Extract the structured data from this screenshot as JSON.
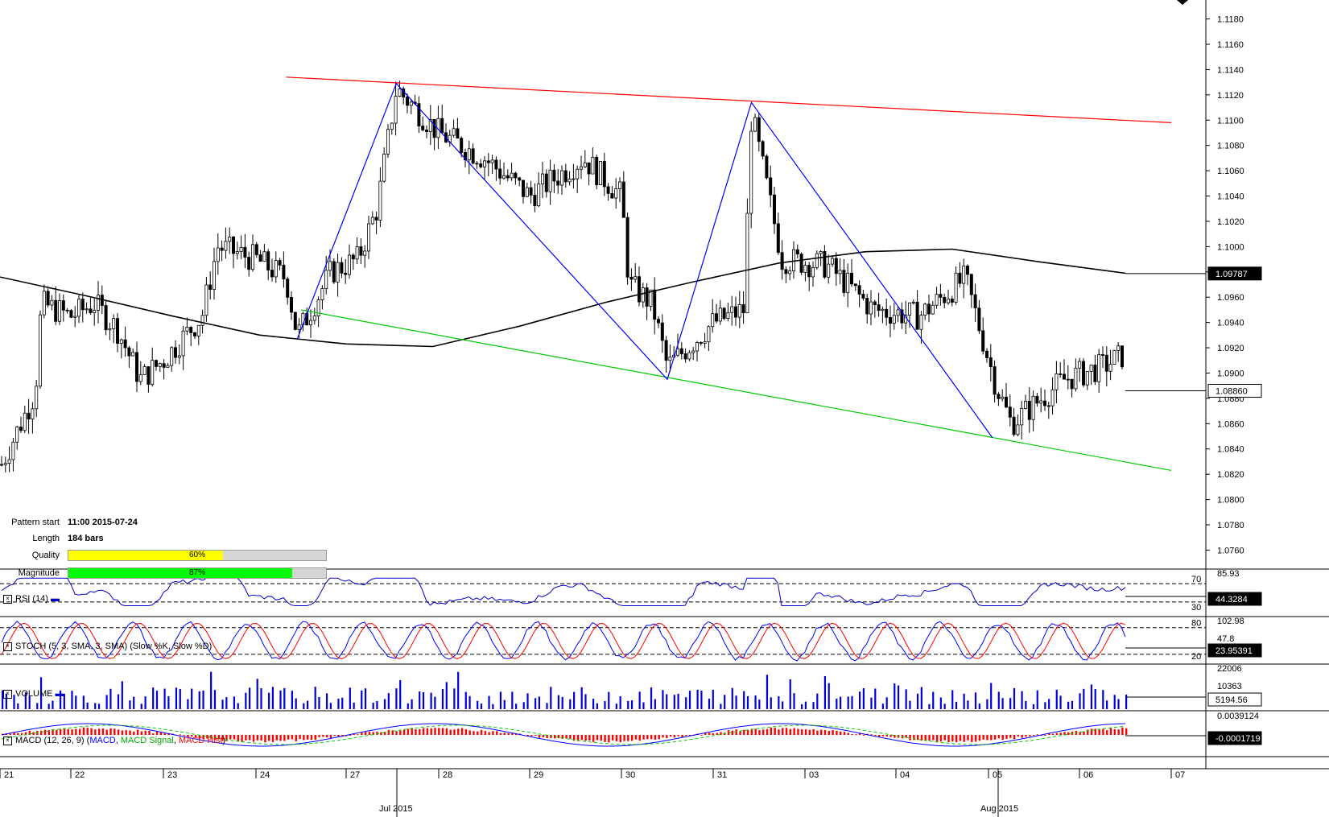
{
  "price_axis": {
    "ticks": [
      "1.1180",
      "1.1160",
      "1.1140",
      "1.1120",
      "1.1100",
      "1.1080",
      "1.1060",
      "1.1040",
      "1.1020",
      "1.1000",
      "1.0980",
      "1.0960",
      "1.0940",
      "1.0920",
      "1.0900",
      "1.0880",
      "1.0860",
      "1.0840",
      "1.0820",
      "1.0800",
      "1.0780",
      "1.0760"
    ],
    "ma_label": "1.09787",
    "price_label": "1.08860"
  },
  "time_axis": {
    "day_labels": [
      "21",
      "22",
      "23",
      "24",
      "27",
      "28",
      "29",
      "30",
      "31",
      "03",
      "04",
      "05",
      "06",
      "07"
    ],
    "month_labels": [
      "Jul 2015",
      "Aug 2015"
    ]
  },
  "pattern_info": {
    "start_label": "Pattern start",
    "start_value": "11:00 2015-07-24",
    "length_label": "Length",
    "length_value": "184 bars",
    "quality_label": "Quality",
    "quality_value": "60%",
    "quality_fraction": 0.6,
    "magnitude_label": "Magnitude",
    "magnitude_value": "87%",
    "magnitude_fraction": 0.87
  },
  "colors": {
    "resistance": "#ff0000",
    "support": "#00cc00",
    "zigzag": "#0000ff",
    "moving_average": "#000000",
    "quality_bar": "#ffff00",
    "magnitude_bar": "#00ff00",
    "rsi": "#0000cc",
    "stoch_k": "#0000ff",
    "stoch_d": "#ff0000",
    "volume": "#0000dd",
    "macd_line": "#0000ff",
    "macd_signal": "#00cc00",
    "macd_hist": "#ff0000"
  },
  "panels": {
    "rsi": {
      "title": "RSI (14)",
      "top_label": "85.93",
      "level_high": "70",
      "level_low": "30",
      "value_label": "44.3284"
    },
    "stoch": {
      "title": "STOCH (5, 3, SMA, 3, SMA) (Slow %K, Slow %D)",
      "top_label": "102.98",
      "mid_label": "47.8",
      "level_high": "80",
      "level_low": "20",
      "value_label": "23.95391"
    },
    "volume": {
      "title": "VOLUME",
      "top_label": "22006",
      "mid_label": "10363",
      "value_label": "5194.56"
    },
    "macd": {
      "title_prefix": "MACD (12, 26, 9) (",
      "title_macd": "MACD",
      "title_signal": "MACD Signal",
      "title_hist": "MACD Hist",
      "title_suffix": ")",
      "top_label": "0.0039124",
      "value_label": "-0.0001719"
    }
  },
  "chart_data": {
    "type": "candlestick",
    "symbol_period": "H1",
    "ylim": [
      1.0745,
      1.1195
    ],
    "x_range_days": [
      "2015-07-21",
      "2015-08-07"
    ],
    "pattern": "descending channel / broadening formation",
    "zigzag_points": [
      {
        "time": "2015-07-24 11:00",
        "price": 1.0927
      },
      {
        "time": "2015-07-27 13:00",
        "price": 1.1129
      },
      {
        "time": "2015-07-30 12:00",
        "price": 1.0895
      },
      {
        "time": "2015-07-31 10:00",
        "price": 1.1114
      },
      {
        "time": "2015-08-05 01:00",
        "price": 1.0849
      }
    ],
    "resistance_line": [
      {
        "time": "2015-07-24 08:00",
        "price": 1.1134
      },
      {
        "time": "2015-08-07 00:00",
        "price": 1.1098
      }
    ],
    "support_line": [
      {
        "time": "2015-07-24 12:00",
        "price": 1.095
      },
      {
        "time": "2015-08-07 00:00",
        "price": 1.0823
      }
    ],
    "moving_average_points": [
      1.0976,
      1.0961,
      1.0945,
      1.093,
      1.0923,
      1.0921,
      1.0937,
      1.0956,
      1.0972,
      1.0987,
      1.0996,
      1.0998,
      1.0988,
      1.0979
    ],
    "last_price": 1.0886,
    "last_ma": 1.09787
  }
}
